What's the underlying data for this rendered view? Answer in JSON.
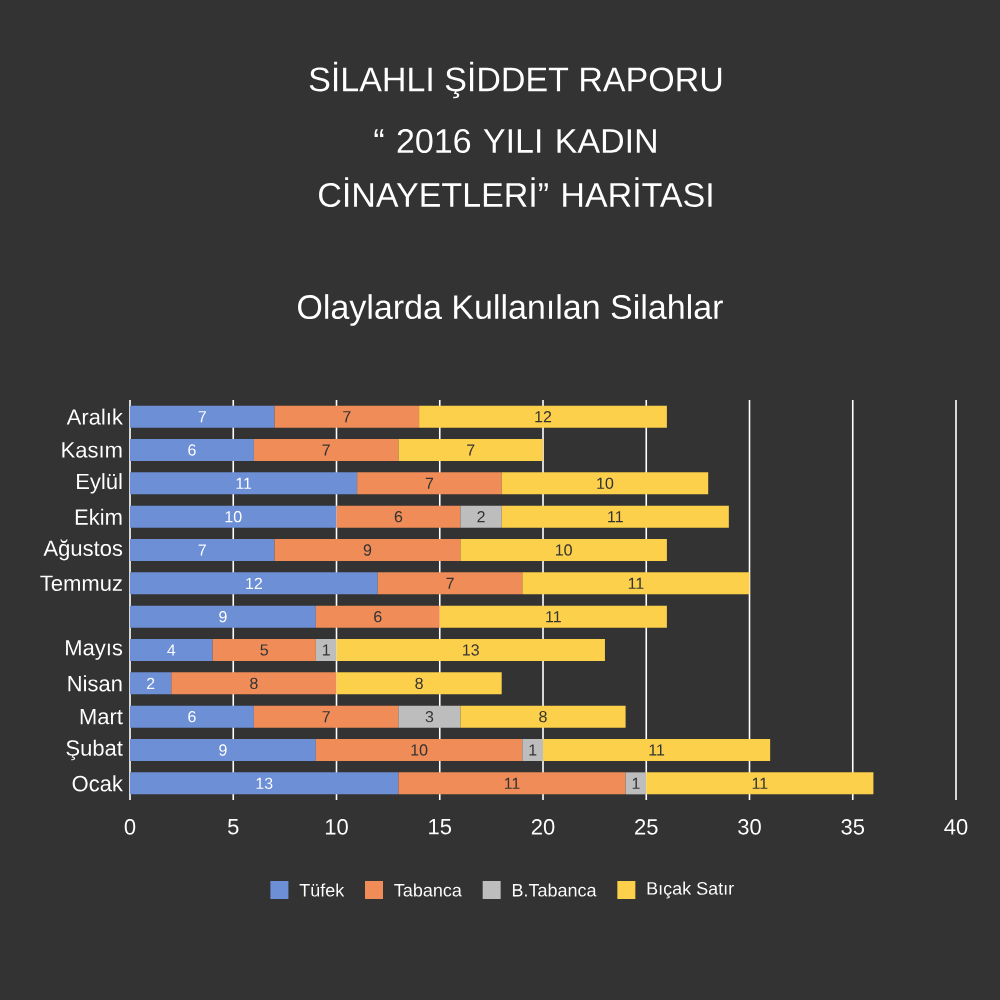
{
  "chart_data": {
    "type": "bar",
    "orientation": "horizontal",
    "stacked": true,
    "title": "SİLAHLI ŞİDDET RAPORU",
    "subtitle": "“ 2016 YILI KADIN CİNAYETLERİ” HARİTASI",
    "annotations": [
      "Olaylarda Kullanılan Silahlar"
    ],
    "categories": [
      "Aralık",
      "Kasım",
      "Eylül",
      "Ekim",
      "Ağustos",
      "Temmuz",
      null,
      "Mayıs",
      "Nisan",
      "Mart",
      "Şubat",
      "Ocak"
    ],
    "series": [
      {
        "name": "Tüfek",
        "color": "#6d8fd6",
        "values": [
          7,
          6,
          11,
          10,
          7,
          12,
          9,
          4,
          2,
          6,
          9,
          13
        ]
      },
      {
        "name": "Tabanca",
        "color": "#ef8c58",
        "values": [
          7,
          7,
          7,
          6,
          9,
          7,
          6,
          5,
          8,
          7,
          10,
          11
        ]
      },
      {
        "name": "B.Tabanca",
        "color": "#bdbdbd",
        "values": [
          null,
          null,
          null,
          2,
          null,
          null,
          null,
          1,
          null,
          3,
          1,
          1
        ]
      },
      {
        "name": "Bıçak Satır",
        "color": "#fcd04b",
        "values": [
          12,
          7,
          10,
          11,
          10,
          11,
          11,
          13,
          8,
          8,
          11,
          11
        ]
      }
    ],
    "xlim": [
      0,
      40
    ],
    "xticks": [
      0,
      5,
      10,
      15,
      20,
      25,
      30,
      35,
      40
    ],
    "grid": "x",
    "legend": "bottom",
    "data_labels": true
  }
}
